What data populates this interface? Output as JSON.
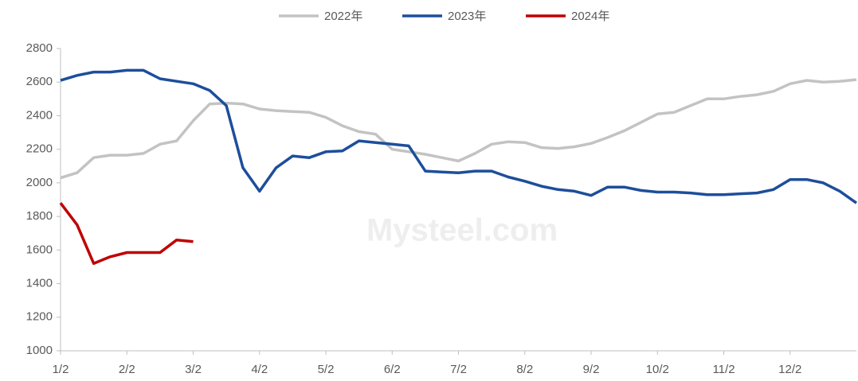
{
  "chart_data": {
    "type": "line",
    "watermark": "Mysteel.com",
    "categories": [
      "1/2",
      null,
      null,
      null,
      "2/2",
      null,
      null,
      null,
      "3/2",
      null,
      null,
      null,
      "4/2",
      null,
      null,
      null,
      "5/2",
      null,
      null,
      null,
      "6/2",
      null,
      null,
      null,
      "7/2",
      null,
      null,
      null,
      "8/2",
      null,
      null,
      null,
      "9/2",
      null,
      null,
      null,
      "10/2",
      null,
      null,
      null,
      "11/2",
      null,
      null,
      null,
      "12/2",
      null,
      null,
      null,
      null
    ],
    "series": [
      {
        "name": "2022年",
        "color": "#c3c3c3",
        "values": [
          2030,
          2060,
          2150,
          2165,
          2165,
          2175,
          2230,
          2250,
          2370,
          2470,
          2475,
          2470,
          2440,
          2430,
          2425,
          2420,
          2390,
          2340,
          2305,
          2290,
          2200,
          2185,
          2170,
          2150,
          2130,
          2175,
          2230,
          2245,
          2240,
          2210,
          2205,
          2215,
          2235,
          2270,
          2310,
          2360,
          2410,
          2420,
          2460,
          2500,
          2500,
          2515,
          2525,
          2545,
          2590,
          2610,
          2600,
          2605,
          2615
        ]
      },
      {
        "name": "2023年",
        "color": "#1d4e9b",
        "values": [
          2610,
          2640,
          2660,
          2660,
          2670,
          2670,
          2620,
          2605,
          2590,
          2550,
          2460,
          2090,
          1950,
          2090,
          2160,
          2150,
          2185,
          2190,
          2250,
          2240,
          2230,
          2220,
          2070,
          2065,
          2060,
          2070,
          2070,
          2035,
          2010,
          1980,
          1960,
          1950,
          1925,
          1975,
          1975,
          1955,
          1945,
          1945,
          1940,
          1930,
          1930,
          1935,
          1940,
          1960,
          2020,
          2020,
          2000,
          1950,
          1880
        ]
      },
      {
        "name": "2024年",
        "color": "#c00000",
        "values": [
          1880,
          1750,
          1520,
          1560,
          1585,
          1585,
          1585,
          1660,
          1650,
          null,
          null,
          null,
          null,
          null,
          null,
          null,
          null,
          null,
          null,
          null,
          null,
          null,
          null,
          null,
          null,
          null,
          null,
          null,
          null,
          null,
          null,
          null,
          null,
          null,
          null,
          null,
          null,
          null,
          null,
          null,
          null,
          null,
          null,
          null,
          null,
          null,
          null,
          null,
          null
        ]
      }
    ],
    "ylim": [
      1000,
      2800
    ],
    "yticks": [
      1000,
      1200,
      1400,
      1600,
      1800,
      2000,
      2200,
      2400,
      2600,
      2800
    ],
    "legend": "top"
  }
}
